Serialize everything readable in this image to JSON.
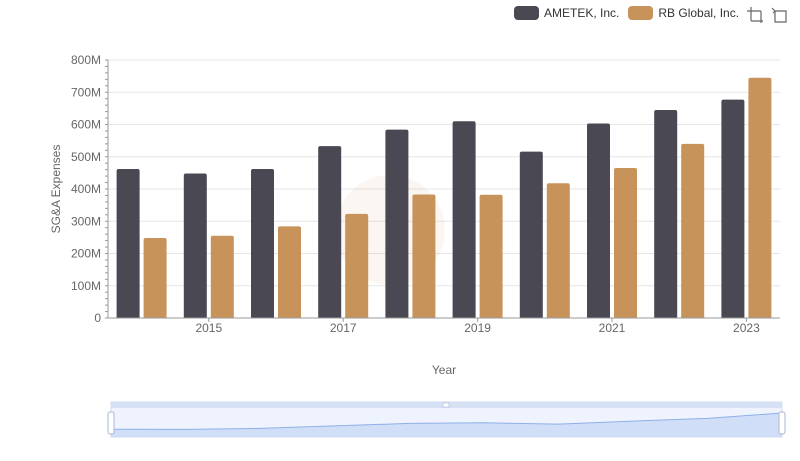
{
  "legend": {
    "items": [
      {
        "name": "AMETEK, Inc.",
        "color": "#494853"
      },
      {
        "name": "RB Global, Inc.",
        "color": "#c8925b"
      }
    ]
  },
  "toolbox": {
    "icons": [
      "zoom-icon",
      "restore-icon"
    ]
  },
  "chart_data": {
    "type": "bar",
    "xlabel": "Year",
    "ylabel": "SG&A Expenses",
    "categories": [
      "2014",
      "2015",
      "2016",
      "2017",
      "2018",
      "2019",
      "2020",
      "2021",
      "2022",
      "2023"
    ],
    "x_tick_labels": [
      "2015",
      "2017",
      "2019",
      "2021",
      "2023"
    ],
    "y_tick_labels": [
      "0",
      "100M",
      "200M",
      "300M",
      "400M",
      "500M",
      "600M",
      "700M",
      "800M"
    ],
    "ylim": [
      0,
      800000000
    ],
    "grid": true,
    "legend_position": "top-right",
    "series": [
      {
        "name": "AMETEK, Inc.",
        "color": "#494853",
        "values": [
          462000000,
          448000000,
          462000000,
          533000000,
          584000000,
          610000000,
          516000000,
          603000000,
          645000000,
          677000000
        ]
      },
      {
        "name": "RB Global, Inc.",
        "color": "#c8925b",
        "values": [
          248000000,
          255000000,
          284000000,
          323000000,
          383000000,
          382000000,
          418000000,
          465000000,
          540000000,
          745000000
        ]
      }
    ]
  }
}
